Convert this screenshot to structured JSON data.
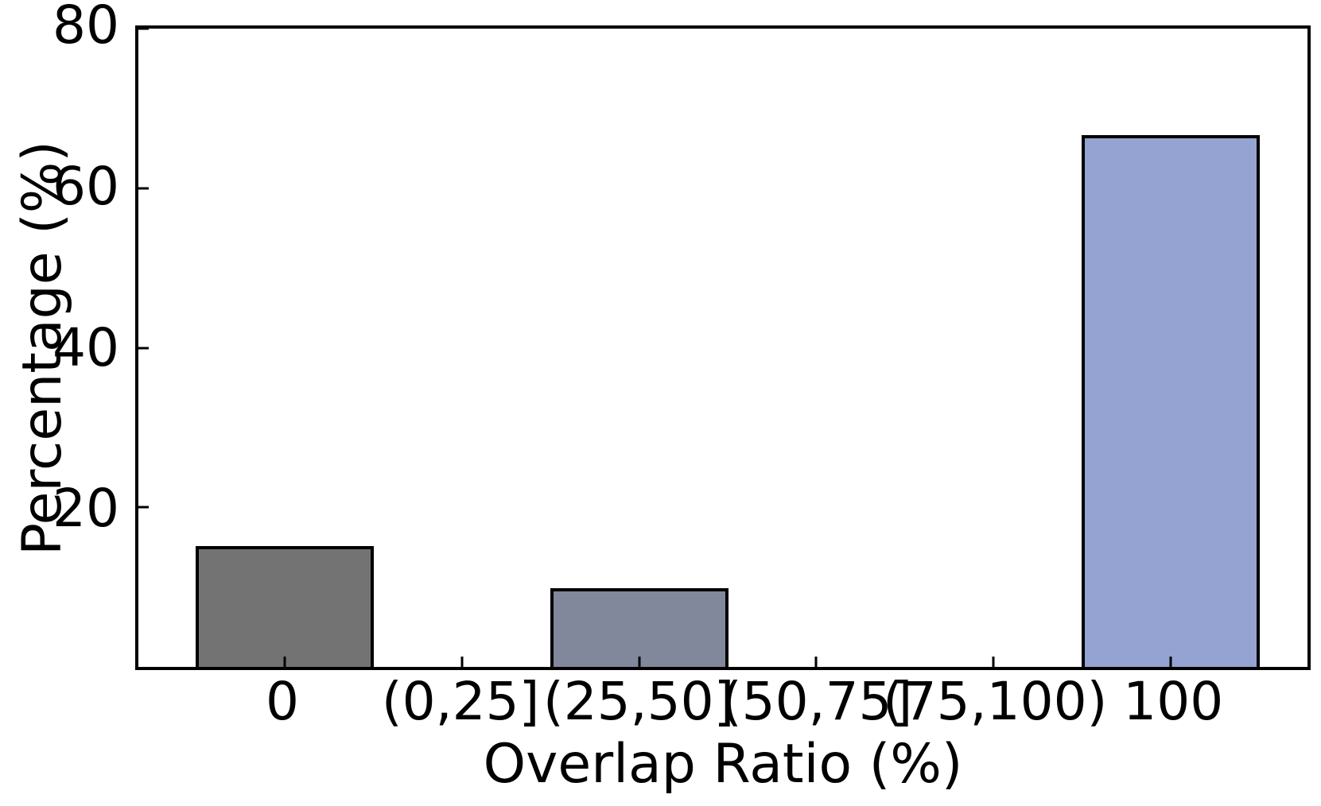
{
  "chart_data": {
    "type": "bar",
    "title": "",
    "xlabel": "Overlap Ratio (%)",
    "ylabel": "Percentage (%)",
    "categories": [
      "0",
      "(0,25]",
      "(25,50]",
      "(50,75]",
      "(75,100)",
      "100"
    ],
    "values": [
      15.1,
      0,
      9.9,
      0,
      0,
      66.7
    ],
    "bar_colors": [
      "#737373",
      null,
      "#81889c",
      null,
      null,
      "#94a3d1"
    ],
    "bar_edge_color": "#000000",
    "ylim": [
      0,
      80
    ],
    "yticks": [
      20,
      40,
      60,
      80
    ],
    "yticklabels": [
      "20",
      "40",
      "60",
      "80"
    ],
    "grid": false,
    "legend": null,
    "background_color": "#ffffff",
    "axis_color": "#000000",
    "tick_direction": "in"
  }
}
